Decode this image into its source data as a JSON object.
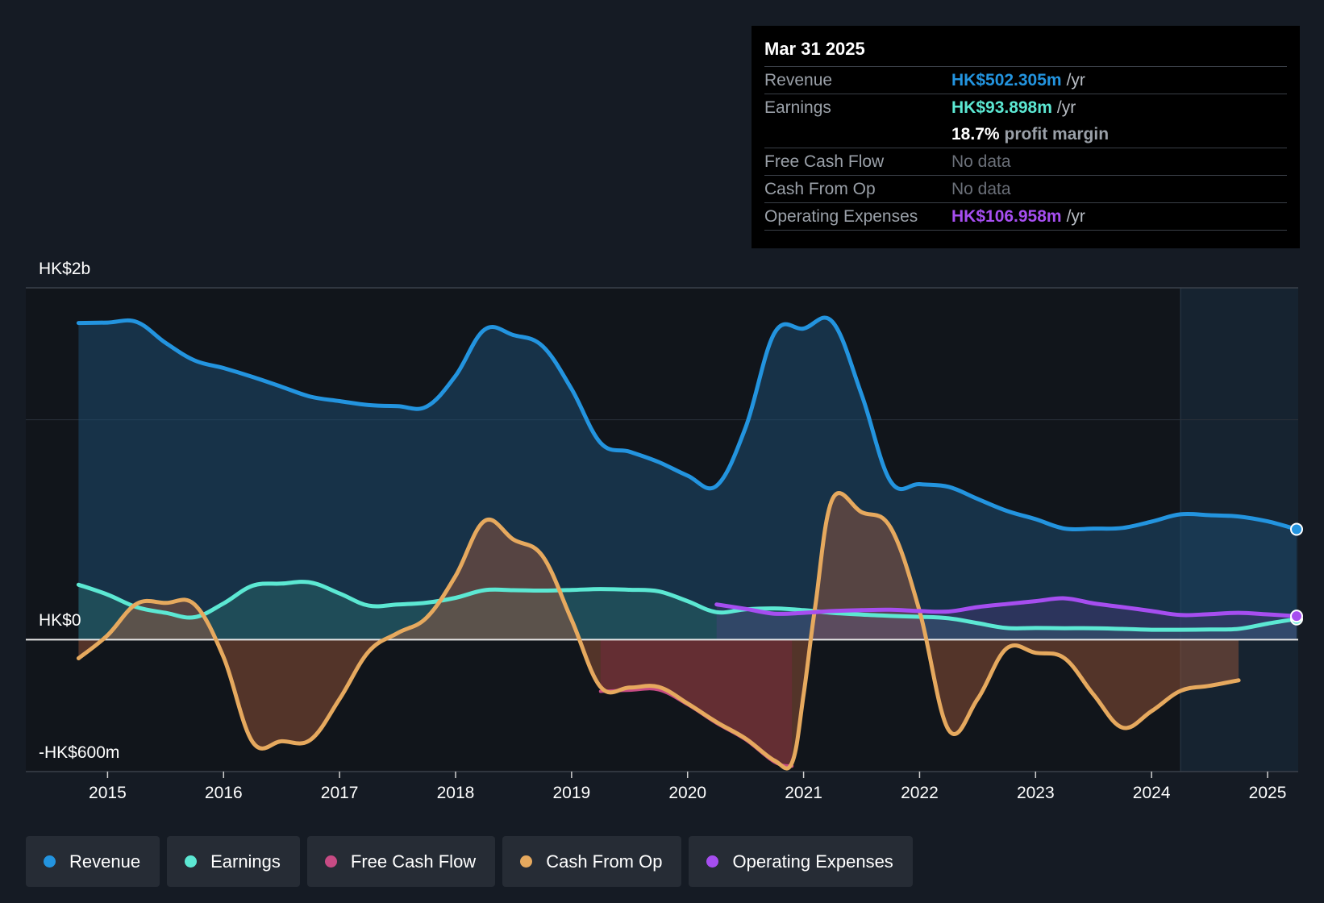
{
  "tooltip": {
    "date": "Mar 31 2025",
    "revenue_label": "Revenue",
    "revenue_value": "HK$502.305m",
    "revenue_unit": "/yr",
    "earnings_label": "Earnings",
    "earnings_value": "HK$93.898m",
    "earnings_unit": "/yr",
    "margin_value": "18.7%",
    "margin_text": "profit margin",
    "fcf_label": "Free Cash Flow",
    "fcf_value": "No data",
    "cfo_label": "Cash From Op",
    "cfo_value": "No data",
    "opex_label": "Operating Expenses",
    "opex_value": "HK$106.958m",
    "opex_unit": "/yr"
  },
  "legend": {
    "revenue": "Revenue",
    "earnings": "Earnings",
    "fcf": "Free Cash Flow",
    "cfo": "Cash From Op",
    "opex": "Operating Expenses"
  },
  "colors": {
    "revenue": "#2394df",
    "earnings": "#5ce8d3",
    "fcf": "#c74b84",
    "cfo": "#e6a95e",
    "opex": "#a64ef0"
  },
  "chart_data": {
    "type": "area",
    "title": "",
    "y_labels": [
      "HK$2b",
      "HK$0",
      "-HK$600m"
    ],
    "ylim": [
      -600,
      1600
    ],
    "x_ticks": [
      "2015",
      "2016",
      "2017",
      "2018",
      "2019",
      "2020",
      "2021",
      "2022",
      "2023",
      "2024",
      "2025"
    ],
    "xlim": [
      2014.74,
      2025.25
    ],
    "forecast_start": 2024.25,
    "series": [
      {
        "name": "Revenue",
        "key": "revenue",
        "points": [
          [
            2014.75,
            1440
          ],
          [
            2015.0,
            1442
          ],
          [
            2015.25,
            1445
          ],
          [
            2015.5,
            1350
          ],
          [
            2015.75,
            1270
          ],
          [
            2016.0,
            1235
          ],
          [
            2016.25,
            1195
          ],
          [
            2016.5,
            1150
          ],
          [
            2016.75,
            1105
          ],
          [
            2017.0,
            1085
          ],
          [
            2017.25,
            1067
          ],
          [
            2017.5,
            1062
          ],
          [
            2017.75,
            1060
          ],
          [
            2018.0,
            1200
          ],
          [
            2018.25,
            1410
          ],
          [
            2018.5,
            1385
          ],
          [
            2018.75,
            1335
          ],
          [
            2019.0,
            1140
          ],
          [
            2019.25,
            895
          ],
          [
            2019.5,
            855
          ],
          [
            2019.75,
            808
          ],
          [
            2020.0,
            746
          ],
          [
            2020.25,
            700
          ],
          [
            2020.5,
            965
          ],
          [
            2020.75,
            1395
          ],
          [
            2021.0,
            1415
          ],
          [
            2021.25,
            1445
          ],
          [
            2021.5,
            1115
          ],
          [
            2021.75,
            720
          ],
          [
            2022.0,
            707
          ],
          [
            2022.25,
            695
          ],
          [
            2022.5,
            640
          ],
          [
            2022.75,
            586
          ],
          [
            2023.0,
            548
          ],
          [
            2023.25,
            505
          ],
          [
            2023.5,
            505
          ],
          [
            2023.75,
            508
          ],
          [
            2024.0,
            537
          ],
          [
            2024.25,
            570
          ],
          [
            2024.5,
            566
          ],
          [
            2024.75,
            560
          ],
          [
            2025.0,
            538
          ],
          [
            2025.25,
            502
          ]
        ]
      },
      {
        "name": "Earnings",
        "key": "earnings",
        "points": [
          [
            2014.75,
            250
          ],
          [
            2015.0,
            205
          ],
          [
            2015.25,
            148
          ],
          [
            2015.5,
            122
          ],
          [
            2015.75,
            102
          ],
          [
            2016.0,
            165
          ],
          [
            2016.25,
            245
          ],
          [
            2016.5,
            255
          ],
          [
            2016.75,
            260
          ],
          [
            2017.0,
            210
          ],
          [
            2017.25,
            155
          ],
          [
            2017.5,
            160
          ],
          [
            2017.75,
            168
          ],
          [
            2018.0,
            190
          ],
          [
            2018.25,
            225
          ],
          [
            2018.5,
            225
          ],
          [
            2018.75,
            223
          ],
          [
            2019.0,
            226
          ],
          [
            2019.25,
            230
          ],
          [
            2019.5,
            227
          ],
          [
            2019.75,
            220
          ],
          [
            2020.0,
            175
          ],
          [
            2020.25,
            125
          ],
          [
            2020.5,
            138
          ],
          [
            2020.75,
            142
          ],
          [
            2021.0,
            134
          ],
          [
            2021.25,
            122
          ],
          [
            2021.5,
            114
          ],
          [
            2021.75,
            108
          ],
          [
            2022.0,
            104
          ],
          [
            2022.25,
            97
          ],
          [
            2022.5,
            75
          ],
          [
            2022.75,
            53
          ],
          [
            2023.0,
            53
          ],
          [
            2023.25,
            52
          ],
          [
            2023.5,
            52
          ],
          [
            2023.75,
            49
          ],
          [
            2024.0,
            45
          ],
          [
            2024.25,
            45
          ],
          [
            2024.5,
            46
          ],
          [
            2024.75,
            49
          ],
          [
            2025.0,
            73
          ],
          [
            2025.25,
            94
          ]
        ]
      },
      {
        "name": "Free Cash Flow",
        "key": "fcf",
        "points": [
          [
            2019.25,
            -235
          ],
          [
            2019.5,
            -230
          ],
          [
            2019.75,
            -228
          ],
          [
            2020.0,
            -295
          ],
          [
            2020.25,
            -380
          ],
          [
            2020.5,
            -455
          ],
          [
            2020.75,
            -557
          ],
          [
            2020.9,
            -575
          ]
        ]
      },
      {
        "name": "Cash From Op",
        "key": "cfo",
        "points": [
          [
            2014.75,
            -85
          ],
          [
            2015.0,
            20
          ],
          [
            2015.25,
            163
          ],
          [
            2015.5,
            167
          ],
          [
            2015.75,
            160
          ],
          [
            2016.0,
            -80
          ],
          [
            2016.25,
            -465
          ],
          [
            2016.5,
            -462
          ],
          [
            2016.75,
            -455
          ],
          [
            2017.0,
            -270
          ],
          [
            2017.25,
            -55
          ],
          [
            2017.5,
            30
          ],
          [
            2017.75,
            100
          ],
          [
            2018.0,
            290
          ],
          [
            2018.25,
            540
          ],
          [
            2018.5,
            455
          ],
          [
            2018.75,
            380
          ],
          [
            2019.0,
            90
          ],
          [
            2019.25,
            -215
          ],
          [
            2019.5,
            -218
          ],
          [
            2019.75,
            -215
          ],
          [
            2020.0,
            -290
          ],
          [
            2020.25,
            -375
          ],
          [
            2020.5,
            -450
          ],
          [
            2020.75,
            -550
          ],
          [
            2020.9,
            -560
          ],
          [
            2021.0,
            -250
          ],
          [
            2021.1,
            150
          ],
          [
            2021.25,
            640
          ],
          [
            2021.5,
            580
          ],
          [
            2021.75,
            510
          ],
          [
            2022.0,
            130
          ],
          [
            2022.25,
            -410
          ],
          [
            2022.5,
            -270
          ],
          [
            2022.75,
            -40
          ],
          [
            2023.0,
            -60
          ],
          [
            2023.25,
            -85
          ],
          [
            2023.5,
            -250
          ],
          [
            2023.75,
            -400
          ],
          [
            2024.0,
            -325
          ],
          [
            2024.25,
            -233
          ],
          [
            2024.5,
            -210
          ],
          [
            2024.75,
            -185
          ]
        ]
      },
      {
        "name": "Operating Expenses",
        "key": "opex",
        "points": [
          [
            2020.25,
            160
          ],
          [
            2020.5,
            140
          ],
          [
            2020.75,
            118
          ],
          [
            2021.0,
            122
          ],
          [
            2021.25,
            130
          ],
          [
            2021.5,
            134
          ],
          [
            2021.75,
            136
          ],
          [
            2022.0,
            130
          ],
          [
            2022.25,
            128
          ],
          [
            2022.5,
            148
          ],
          [
            2022.75,
            162
          ],
          [
            2023.0,
            175
          ],
          [
            2023.25,
            188
          ],
          [
            2023.5,
            165
          ],
          [
            2023.75,
            148
          ],
          [
            2024.0,
            130
          ],
          [
            2024.25,
            112
          ],
          [
            2024.5,
            116
          ],
          [
            2024.75,
            122
          ],
          [
            2025.0,
            115
          ],
          [
            2025.25,
            107
          ]
        ]
      }
    ]
  }
}
